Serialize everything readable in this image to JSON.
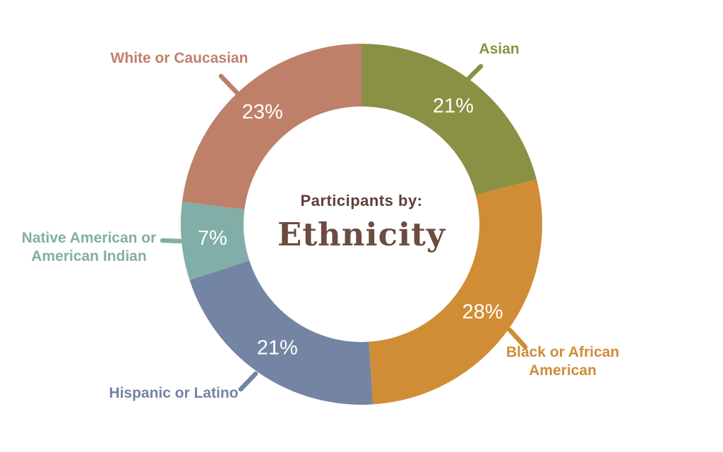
{
  "background_color": "#ffffff",
  "center_title": {
    "eyebrow": "Participants by:",
    "title": "Ethnicity",
    "eyebrow_color": "#5d4037",
    "title_color": "#6b4c41"
  },
  "chart_data": {
    "type": "pie",
    "subtype": "donut",
    "title": "Participants by: Ethnicity",
    "start_angle_deg": 0,
    "direction": "clockwise",
    "value_label_color": "#ffffff",
    "segments": [
      {
        "label": "Asian",
        "value": 21,
        "display": "21%",
        "color": "#8a9144"
      },
      {
        "label": "Black or African American",
        "value": 28,
        "display": "28%",
        "color": "#d08d36"
      },
      {
        "label": "Hispanic or Latino",
        "value": 21,
        "display": "21%",
        "color": "#7484a3"
      },
      {
        "label": "Native American or American Indian",
        "value": 7,
        "display": "7%",
        "color": "#82aea8"
      },
      {
        "label": "White or Caucasian",
        "value": 23,
        "display": "23%",
        "color": "#bf8069"
      }
    ]
  }
}
